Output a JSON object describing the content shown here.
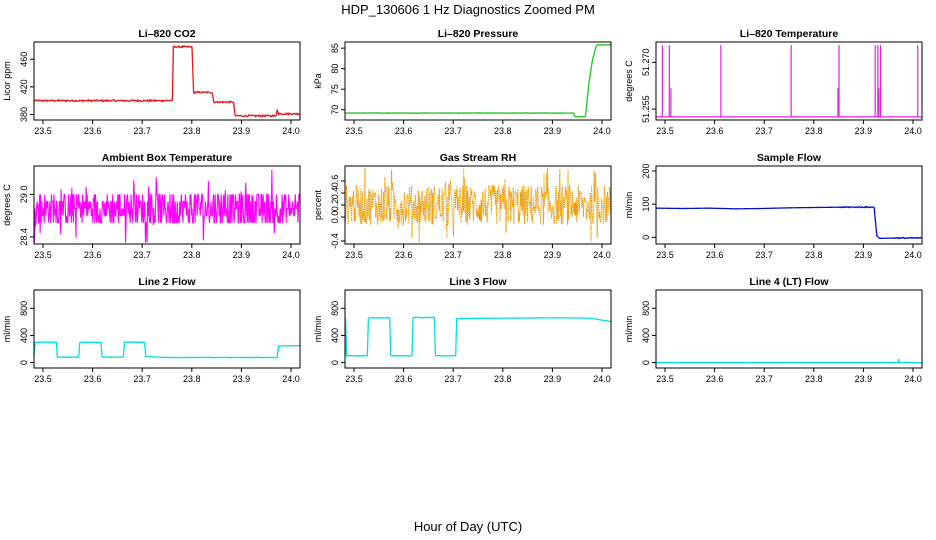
{
  "title": "HDP_130606  1 Hz Diagnostics Zoomed PM",
  "xlabel": "Hour of Day (UTC)",
  "colors": {
    "red": "#e31a1c",
    "green": "#22c422",
    "magenta": "#e020e0",
    "magenta_full": "#ff00ff",
    "orange": "#ee9a00",
    "blue": "#0010cc",
    "cyan": "#00e0e0"
  },
  "chart_data": [
    {
      "id": "co2",
      "type": "line",
      "title": "Li–820 CO2",
      "ylabel": "Licor ppm",
      "color": "red",
      "xlim": [
        23.5,
        24.0
      ],
      "ylim": [
        372,
        485
      ],
      "xticks": [
        "23.5",
        "23.6",
        "23.7",
        "23.8",
        "23.9",
        "24.0"
      ],
      "yticks": [
        "380",
        "420",
        "460"
      ],
      "noise": 1.2,
      "series": [
        {
          "x": [
            23.5,
            23.76
          ],
          "y": [
            400,
            400
          ]
        },
        {
          "x": [
            23.76,
            23.762,
            23.797
          ],
          "y": [
            400,
            478,
            478
          ]
        },
        {
          "x": [
            23.797,
            23.8,
            23.835
          ],
          "y": [
            478,
            412,
            412
          ]
        },
        {
          "x": [
            23.835,
            23.838,
            23.875
          ],
          "y": [
            412,
            398,
            398
          ]
        },
        {
          "x": [
            23.875,
            23.878,
            23.955
          ],
          "y": [
            398,
            378,
            378
          ]
        },
        {
          "x": [
            23.955,
            23.957,
            23.96,
            24.0
          ],
          "y": [
            378,
            386,
            381,
            381
          ]
        }
      ]
    },
    {
      "id": "pressure",
      "type": "line",
      "title": "Li–820 Pressure",
      "ylabel": "kPa",
      "color": "green",
      "xlim": [
        23.5,
        24.0
      ],
      "ylim": [
        67.5,
        86.5
      ],
      "xticks": [
        "23.5",
        "23.6",
        "23.7",
        "23.8",
        "23.9",
        "24.0"
      ],
      "yticks": [
        "70",
        "75",
        "80",
        "85"
      ],
      "noise": 0.05,
      "series": [
        {
          "x": [
            23.5,
            23.93
          ],
          "y": [
            69.2,
            69.2
          ]
        },
        {
          "x": [
            23.93,
            23.932,
            23.952
          ],
          "y": [
            69.2,
            68.3,
            68.3
          ]
        },
        {
          "x": [
            23.952,
            23.958,
            23.965,
            23.972,
            23.975,
            24.0
          ],
          "y": [
            68.3,
            76,
            82,
            85.5,
            85.8,
            85.8
          ]
        }
      ]
    },
    {
      "id": "temperature",
      "type": "spikes",
      "title": "Li–820 Temperature",
      "ylabel": "degrees C",
      "color": "magenta",
      "xlim": [
        23.5,
        24.0
      ],
      "ylim": [
        51.2515,
        51.2765
      ],
      "xticks": [
        "23.5",
        "23.6",
        "23.7",
        "23.8",
        "23.9",
        "24.0"
      ],
      "yticks": [
        "51.255",
        "51.270"
      ],
      "base": 51.2525,
      "peak": 51.2755,
      "spikes": [
        23.512,
        23.525,
        23.622,
        23.754,
        23.844,
        23.912,
        23.917,
        23.922,
        23.992
      ],
      "small_spikes": [
        23.528,
        23.842,
        23.919
      ]
    },
    {
      "id": "ambient",
      "type": "noise",
      "title": "Ambient Box Temperature",
      "ylabel": "degrees C",
      "color": "magenta_full",
      "xlim": [
        23.5,
        24.0
      ],
      "ylim": [
        28.3,
        29.4
      ],
      "xticks": [
        "23.5",
        "23.6",
        "23.7",
        "23.8",
        "23.9",
        "24.0"
      ],
      "yticks": [
        "28.4",
        "29.0"
      ],
      "center": 28.8,
      "spread": 0.3,
      "levels": 5,
      "step": 0.1
    },
    {
      "id": "rh",
      "type": "noise",
      "title": "Gas Stream RH",
      "ylabel": "percent",
      "color": "orange",
      "xlim": [
        23.5,
        24.0
      ],
      "ylim": [
        -0.45,
        0.85
      ],
      "xticks": [
        "23.5",
        "23.6",
        "23.7",
        "23.8",
        "23.9",
        "24.0"
      ],
      "yticks": [
        "-0.4",
        "0.0",
        "0.2",
        "0.4",
        "0.6"
      ],
      "center": 0.2,
      "spread": 0.45,
      "levels": 0,
      "step": 0,
      "dots": true
    },
    {
      "id": "sample",
      "type": "line",
      "title": "Sample Flow",
      "ylabel": "ml/min",
      "color": "blue",
      "xlim": [
        23.5,
        24.0
      ],
      "ylim": [
        -20,
        215
      ],
      "xticks": [
        "23.5",
        "23.6",
        "23.7",
        "23.8",
        "23.9",
        "24.0"
      ],
      "yticks": [
        "0",
        "100",
        "200"
      ],
      "noise": 1.5,
      "series": [
        {
          "x": [
            23.5,
            23.55,
            23.6,
            23.65,
            23.7,
            23.75,
            23.8,
            23.85,
            23.91
          ],
          "y": [
            88,
            87,
            88,
            86,
            87,
            89,
            90,
            91,
            91
          ]
        },
        {
          "x": [
            23.91,
            23.915,
            23.92,
            23.95,
            24.0
          ],
          "y": [
            91,
            5,
            -3,
            -2,
            -2
          ]
        }
      ]
    },
    {
      "id": "line2",
      "type": "line",
      "title": "Line 2 Flow",
      "ylabel": "ml/min",
      "color": "cyan",
      "xlim": [
        23.5,
        24.0
      ],
      "ylim": [
        -80,
        1070
      ],
      "xticks": [
        "23.5",
        "23.6",
        "23.7",
        "23.8",
        "23.9",
        "24.0"
      ],
      "yticks": [
        "0",
        "400",
        "800"
      ],
      "noise": 3,
      "series": [
        {
          "x": [
            23.5,
            23.502,
            23.542
          ],
          "y": [
            100,
            300,
            300
          ]
        },
        {
          "x": [
            23.542,
            23.544,
            23.584
          ],
          "y": [
            300,
            80,
            80
          ]
        },
        {
          "x": [
            23.584,
            23.586,
            23.626
          ],
          "y": [
            80,
            300,
            300
          ]
        },
        {
          "x": [
            23.626,
            23.628,
            23.668
          ],
          "y": [
            300,
            80,
            80
          ]
        },
        {
          "x": [
            23.668,
            23.67,
            23.708
          ],
          "y": [
            80,
            300,
            300
          ]
        },
        {
          "x": [
            23.708,
            23.71,
            23.75,
            23.957
          ],
          "y": [
            300,
            90,
            75,
            75
          ]
        },
        {
          "x": [
            23.957,
            23.96,
            24.0
          ],
          "y": [
            75,
            245,
            250
          ]
        }
      ]
    },
    {
      "id": "line3",
      "type": "line",
      "title": "Line 3 Flow",
      "ylabel": "ml/min",
      "color": "cyan",
      "xlim": [
        23.5,
        24.0
      ],
      "ylim": [
        -80,
        1070
      ],
      "xticks": [
        "23.5",
        "23.6",
        "23.7",
        "23.8",
        "23.9",
        "24.0"
      ],
      "yticks": [
        "0",
        "400",
        "800"
      ],
      "noise": 4,
      "series": [
        {
          "x": [
            23.5,
            23.501,
            23.503,
            23.542
          ],
          "y": [
            100,
            650,
            100,
            100
          ]
        },
        {
          "x": [
            23.542,
            23.544,
            23.584
          ],
          "y": [
            100,
            660,
            660
          ]
        },
        {
          "x": [
            23.584,
            23.586,
            23.626
          ],
          "y": [
            660,
            100,
            100
          ]
        },
        {
          "x": [
            23.626,
            23.628,
            23.668
          ],
          "y": [
            100,
            665,
            665
          ]
        },
        {
          "x": [
            23.668,
            23.67,
            23.708
          ],
          "y": [
            665,
            100,
            100
          ]
        },
        {
          "x": [
            23.708,
            23.71,
            23.8,
            23.9,
            23.96,
            24.0
          ],
          "y": [
            100,
            650,
            655,
            660,
            655,
            605
          ]
        }
      ]
    },
    {
      "id": "line4",
      "type": "line",
      "title": "Line 4 (LT) Flow",
      "ylabel": "ml/min",
      "color": "cyan",
      "xlim": [
        23.5,
        24.0
      ],
      "ylim": [
        -80,
        1070
      ],
      "xticks": [
        "23.5",
        "23.6",
        "23.7",
        "23.8",
        "23.9",
        "24.0"
      ],
      "yticks": [
        "0",
        "400",
        "800"
      ],
      "noise": 0.5,
      "series": [
        {
          "x": [
            23.5,
            23.955,
            23.956,
            23.957,
            23.958,
            24.0
          ],
          "y": [
            0,
            0,
            55,
            10,
            0,
            0
          ]
        }
      ]
    }
  ]
}
